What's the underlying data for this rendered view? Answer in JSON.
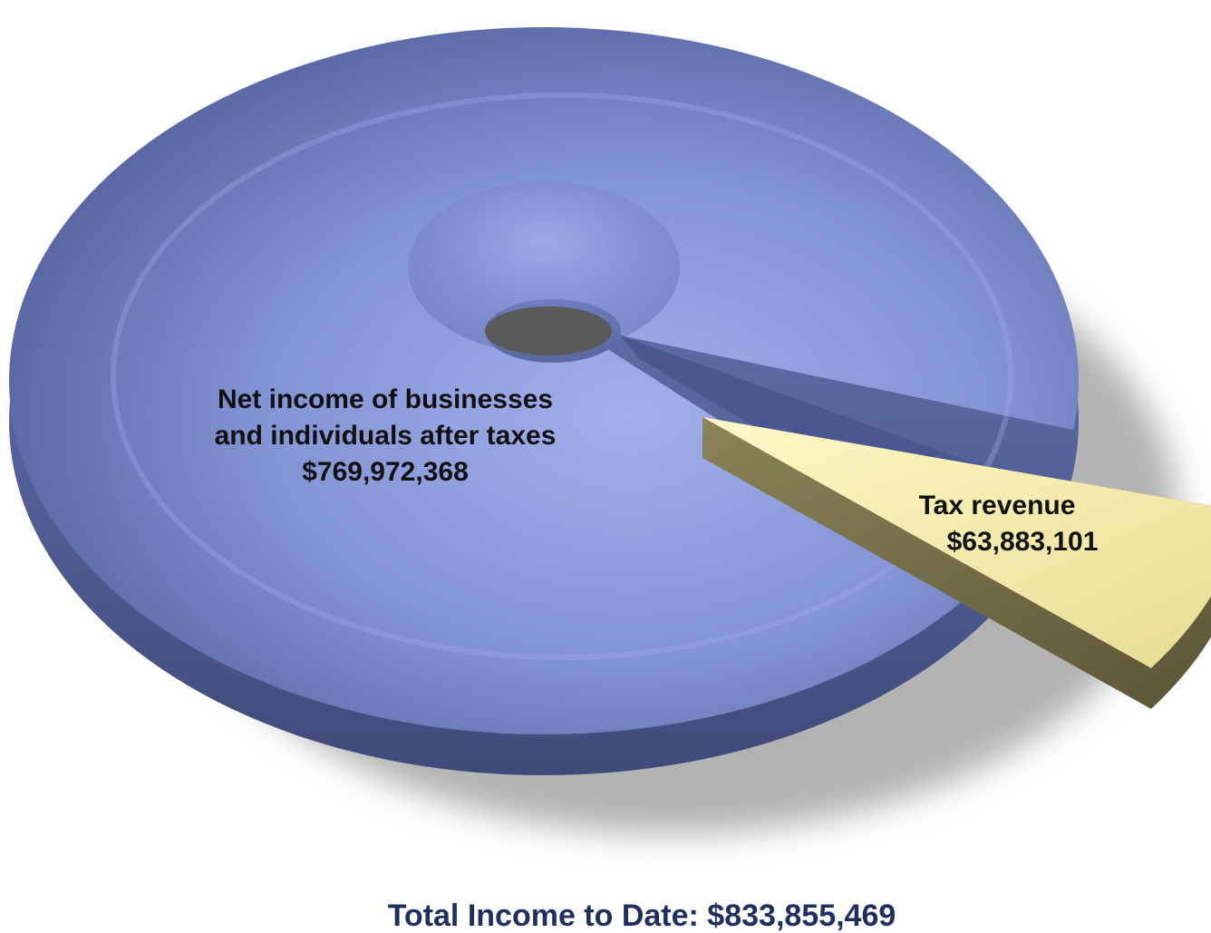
{
  "chart_data": {
    "type": "pie",
    "style": "3d-donut",
    "slices": [
      {
        "label_lines": [
          "Net income of businesses",
          "and individuals after taxes"
        ],
        "value_label": "$769,972,368",
        "value": 769972368,
        "color": "#7f90cf"
      },
      {
        "label_lines": [
          "Tax revenue"
        ],
        "value_label": "$63,883,101",
        "value": 63883101,
        "color": "#f3eaa6",
        "exploded": true
      }
    ],
    "total_label": "Total Income to Date: $833,855,469",
    "total": 833855469,
    "colors": {
      "body_dark": "#4a5790",
      "body_light": "#93a3e6",
      "rim": "#3f4a7a",
      "wedge_side": "#6e6846",
      "label_color": "#111111",
      "total_color": "#1f2f5f",
      "shadow": "#9a9a9a"
    },
    "legend": "none"
  }
}
